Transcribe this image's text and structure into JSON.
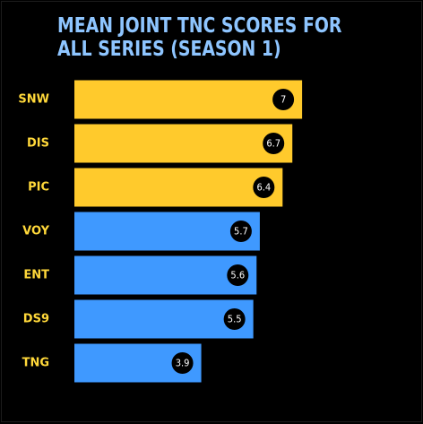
{
  "chart_data": {
    "type": "bar",
    "orientation": "horizontal",
    "title": "MEAN JOINT TNC SCORES FOR ALL SERIES (SEASON 1)",
    "categories": [
      "SNW",
      "DIS",
      "PIC",
      "VOY",
      "ENT",
      "DS9",
      "TNG"
    ],
    "values": [
      7,
      6.7,
      6.4,
      5.7,
      5.6,
      5.5,
      3.9
    ],
    "value_labels": [
      "7",
      "6.7",
      "6.4",
      "5.7",
      "5.6",
      "5.5",
      "3.9"
    ],
    "xlim": [
      0,
      10
    ],
    "grid": false,
    "legend": "none",
    "bar_colors": [
      "#ffca2c",
      "#ffca2c",
      "#ffca2c",
      "#3f99ff",
      "#3f99ff",
      "#3f99ff",
      "#3f99ff"
    ]
  },
  "colors": {
    "background": "#000000",
    "title": "#8ec5ff",
    "category_label": "#ffd83a",
    "badge_fill": "#000000",
    "badge_text": "#ffffff"
  }
}
